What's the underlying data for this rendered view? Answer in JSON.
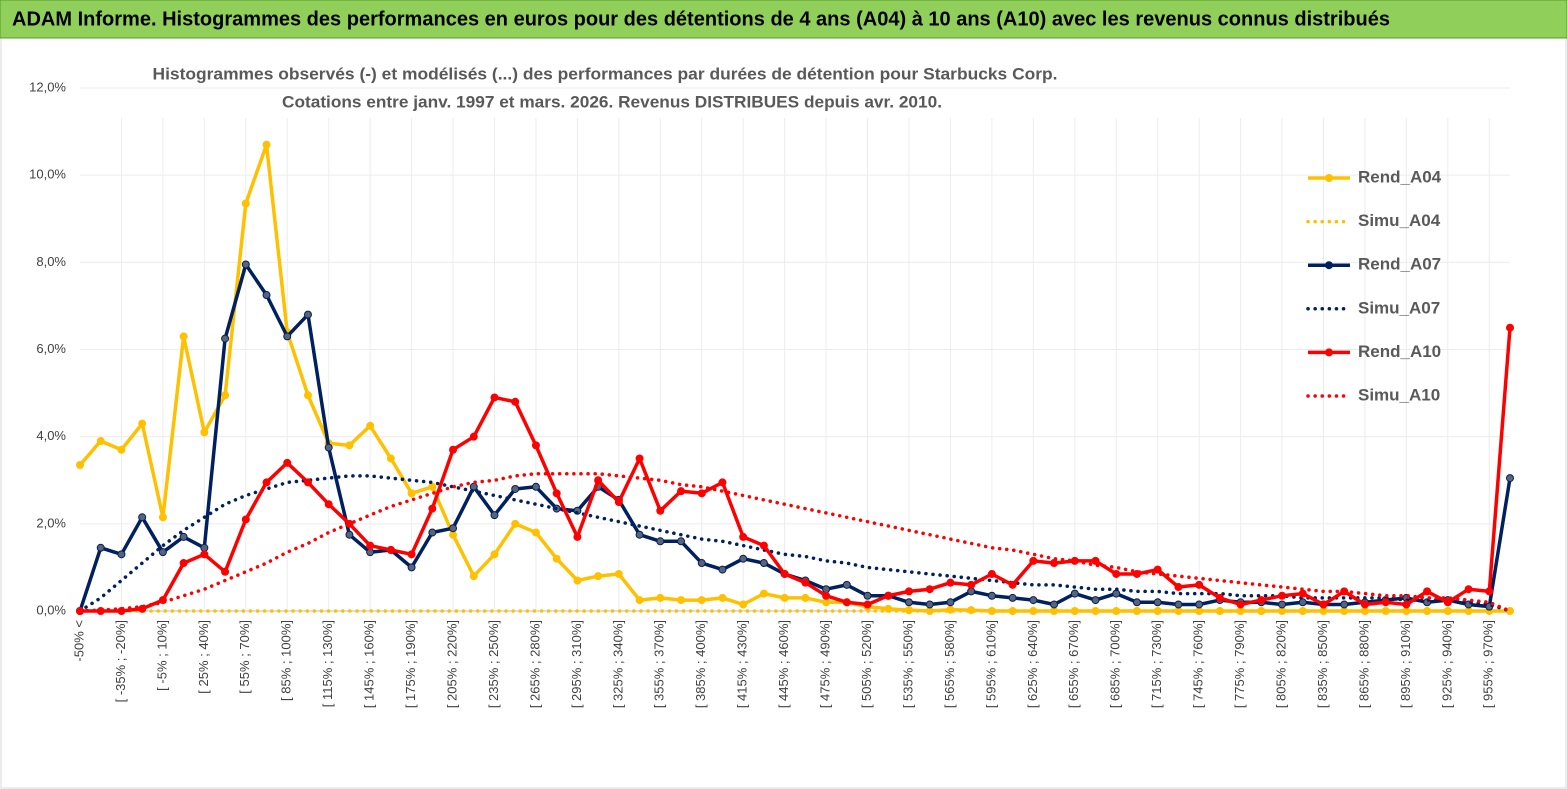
{
  "header": {
    "title": "ADAM Informe. Histogrammes des performances en euros pour des détentions de 4 ans (A04) à 10 ans (A10) avec les revenus connus distribués"
  },
  "chart_data": {
    "type": "line",
    "title": "Histogrammes observés (-) et modélisés (...) des performances par durées de détention pour Starbucks Corp.",
    "subtitle": "Cotations entre janv. 1997 et mars. 2026. Revenus DISTRIBUES depuis avr. 2010.",
    "categories": [
      "-50% <",
      null,
      "[ -35% ; -20%]",
      null,
      "[ -5% ; 10%]",
      null,
      "[ 25% ; 40%]",
      null,
      "[ 55% ; 70%]",
      null,
      "[ 85% ; 100%]",
      null,
      "[ 115% ; 130%]",
      null,
      "[ 145% ; 160%]",
      null,
      "[ 175% ; 190%]",
      null,
      "[ 205% ; 220%]",
      null,
      "[ 235% ; 250%]",
      null,
      "[ 265% ; 280%]",
      null,
      "[ 295% ; 310%]",
      null,
      "[ 325% ; 340%]",
      null,
      "[ 355% ; 370%]",
      null,
      "[ 385% ; 400%]",
      null,
      "[ 415% ; 430%]",
      null,
      "[ 445% ; 460%]",
      null,
      "[ 475% ; 490%]",
      null,
      "[ 505% ; 520%]",
      null,
      "[ 535% ; 550%]",
      null,
      "[ 565% ; 580%]",
      null,
      "[ 595% ; 610%]",
      null,
      "[ 625% ; 640%]",
      null,
      "[ 655% ; 670%]",
      null,
      "[ 685% ; 700%]",
      null,
      "[ 715% ; 730%]",
      null,
      "[ 745% ; 760%]",
      null,
      "[ 775% ; 790%]",
      null,
      "[ 805% ; 820%]",
      null,
      "[ 835% ; 850%]",
      null,
      "[ 865% ; 880%]",
      null,
      "[ 895% ; 910%]",
      null,
      "[ 925% ; 940%]",
      null,
      "[ 955% ; 970%]",
      null
    ],
    "ylim": [
      0,
      12
    ],
    "yticks": [
      {
        "value": 0,
        "label": "0,0%"
      },
      {
        "value": 2,
        "label": "2,0%"
      },
      {
        "value": 4,
        "label": "4,0%"
      },
      {
        "value": 6,
        "label": "6,0%"
      },
      {
        "value": 8,
        "label": "8,0%"
      },
      {
        "value": 10,
        "label": "10,0%"
      },
      {
        "value": 12,
        "label": "12,0%"
      }
    ],
    "grid": true,
    "legend": "right",
    "series": [
      {
        "name": "Rend_A04",
        "color": "#ffc000",
        "line_style": "solid",
        "markers": true,
        "values": [
          3.35,
          3.9,
          3.7,
          4.3,
          2.15,
          6.3,
          4.1,
          4.95,
          9.35,
          10.7,
          6.4,
          4.95,
          3.85,
          3.8,
          4.25,
          3.5,
          2.7,
          2.85,
          1.75,
          0.8,
          1.3,
          2.0,
          1.8,
          1.2,
          0.7,
          0.8,
          0.85,
          0.25,
          0.3,
          0.25,
          0.25,
          0.3,
          0.15,
          0.4,
          0.3,
          0.3,
          0.2,
          0.2,
          0.1,
          0.05,
          0.02,
          0,
          0.03,
          0.02,
          0,
          0,
          0,
          0,
          0,
          0,
          0,
          0,
          0,
          0,
          0,
          0,
          0,
          0,
          0,
          0,
          0,
          0,
          0,
          0,
          0,
          0,
          0,
          0,
          0,
          0
        ]
      },
      {
        "name": "Simu_A04",
        "color": "#ffc000",
        "line_style": "dotted",
        "markers": false,
        "values": [
          0,
          0,
          0,
          0,
          0,
          0,
          0,
          0,
          0,
          0,
          0,
          0,
          0,
          0,
          0,
          0,
          0,
          0,
          0,
          0,
          0,
          0,
          0,
          0,
          0,
          0,
          0,
          0,
          0,
          0,
          0,
          0,
          0,
          0,
          0,
          0,
          0,
          0,
          0,
          0,
          0,
          0,
          0,
          0,
          0,
          0,
          0,
          0,
          0,
          0,
          0,
          0,
          0,
          0,
          0,
          0,
          0,
          0,
          0,
          0,
          0,
          0,
          0,
          0,
          0,
          0,
          0,
          0,
          0,
          0
        ]
      },
      {
        "name": "Rend_A07",
        "color": "#002060",
        "line_style": "solid",
        "markers": true,
        "values": [
          0,
          1.45,
          1.3,
          2.15,
          1.35,
          1.7,
          1.45,
          6.25,
          7.95,
          7.25,
          6.3,
          6.8,
          3.75,
          1.75,
          1.35,
          1.4,
          1.0,
          1.8,
          1.9,
          2.85,
          2.2,
          2.8,
          2.85,
          2.35,
          2.3,
          2.85,
          2.55,
          1.75,
          1.6,
          1.6,
          1.1,
          0.95,
          1.2,
          1.1,
          0.85,
          0.7,
          0.5,
          0.6,
          0.35,
          0.35,
          0.2,
          0.15,
          0.2,
          0.45,
          0.35,
          0.3,
          0.25,
          0.15,
          0.4,
          0.25,
          0.4,
          0.2,
          0.2,
          0.15,
          0.15,
          0.25,
          0.2,
          0.2,
          0.15,
          0.2,
          0.15,
          0.15,
          0.2,
          0.25,
          0.3,
          0.2,
          0.25,
          0.15,
          0.1,
          3.05
        ]
      },
      {
        "name": "Simu_A07",
        "color": "#002060",
        "line_style": "dotted",
        "markers": false,
        "values": [
          0,
          0.3,
          0.7,
          1.1,
          1.5,
          1.85,
          2.15,
          2.45,
          2.65,
          2.8,
          2.95,
          3.0,
          3.05,
          3.1,
          3.1,
          3.05,
          3.0,
          2.95,
          2.85,
          2.75,
          2.65,
          2.55,
          2.45,
          2.35,
          2.25,
          2.15,
          2.05,
          1.95,
          1.85,
          1.75,
          1.65,
          1.6,
          1.5,
          1.4,
          1.3,
          1.25,
          1.15,
          1.1,
          1.0,
          0.95,
          0.9,
          0.85,
          0.8,
          0.75,
          0.7,
          0.65,
          0.6,
          0.6,
          0.55,
          0.5,
          0.5,
          0.45,
          0.45,
          0.4,
          0.4,
          0.4,
          0.35,
          0.35,
          0.35,
          0.3,
          0.3,
          0.3,
          0.3,
          0.3,
          0.25,
          0.25,
          0.25,
          0.2,
          0.15,
          0
        ]
      },
      {
        "name": "Rend_A10",
        "color": "#ff0000",
        "line_style": "solid",
        "markers": true,
        "values": [
          0,
          0,
          0,
          0.05,
          0.25,
          1.1,
          1.3,
          0.9,
          2.1,
          2.95,
          3.4,
          2.95,
          2.45,
          2.0,
          1.5,
          1.4,
          1.3,
          2.35,
          3.7,
          4.0,
          4.9,
          4.8,
          3.8,
          2.7,
          1.7,
          3.0,
          2.5,
          3.5,
          2.3,
          2.75,
          2.7,
          2.95,
          1.7,
          1.5,
          0.85,
          0.65,
          0.35,
          0.2,
          0.15,
          0.35,
          0.45,
          0.5,
          0.65,
          0.6,
          0.85,
          0.6,
          1.15,
          1.1,
          1.15,
          1.15,
          0.85,
          0.85,
          0.95,
          0.55,
          0.6,
          0.3,
          0.15,
          0.25,
          0.35,
          0.4,
          0.15,
          0.45,
          0.15,
          0.2,
          0.15,
          0.45,
          0.2,
          0.5,
          0.45,
          6.5
        ]
      },
      {
        "name": "Simu_A10",
        "color": "#ff0000",
        "line_style": "dotted",
        "markers": false,
        "values": [
          0,
          0.02,
          0.05,
          0.1,
          0.2,
          0.35,
          0.5,
          0.7,
          0.9,
          1.1,
          1.35,
          1.55,
          1.8,
          2.0,
          2.2,
          2.4,
          2.55,
          2.7,
          2.85,
          2.95,
          3.0,
          3.1,
          3.15,
          3.15,
          3.15,
          3.15,
          3.1,
          3.05,
          3.0,
          2.9,
          2.85,
          2.75,
          2.65,
          2.55,
          2.45,
          2.35,
          2.25,
          2.15,
          2.05,
          1.95,
          1.85,
          1.75,
          1.65,
          1.55,
          1.45,
          1.4,
          1.3,
          1.2,
          1.15,
          1.05,
          1.0,
          0.9,
          0.85,
          0.8,
          0.75,
          0.7,
          0.65,
          0.6,
          0.55,
          0.5,
          0.45,
          0.45,
          0.4,
          0.35,
          0.35,
          0.3,
          0.3,
          0.25,
          0.2,
          0
        ]
      }
    ]
  }
}
